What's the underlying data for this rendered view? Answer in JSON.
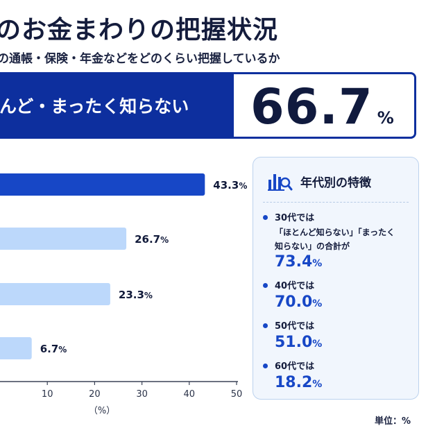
{
  "header": {
    "title": "のお金まわりの把握状況",
    "subtitle": "の通帳・保険・年金などをどのくらい把握しているか"
  },
  "banner": {
    "label": "んど・まったく知らない",
    "value": "66.7",
    "unit": "%"
  },
  "chart_data": {
    "type": "bar",
    "orientation": "horizontal",
    "values": [
      43.3,
      26.7,
      23.3,
      6.7
    ],
    "value_suffix": "%",
    "xlabel": "（%）",
    "xlim": [
      0,
      50
    ],
    "xticks": [
      "10",
      "20",
      "30",
      "40",
      "50"
    ],
    "colors": [
      "#1747c6",
      "#bcd8fb",
      "#bcd8fb",
      "#bcd8fb"
    ]
  },
  "panel": {
    "title": "年代別の特徴",
    "icon": "bar-chart-magnifier-icon",
    "findings": [
      {
        "label": "30代では",
        "detail": [
          "「ほとんど知らない」「まったく",
          "知らない」の合計が"
        ],
        "value": "73.4",
        "unit": "%"
      },
      {
        "label": "40代では",
        "detail": [],
        "value": "70.0",
        "unit": "%"
      },
      {
        "label": "50代では",
        "detail": [],
        "value": "51.0",
        "unit": "%"
      },
      {
        "label": "60代では",
        "detail": [],
        "value": "18.2",
        "unit": "%"
      }
    ]
  },
  "footer": {
    "unit_note": "単位：%"
  },
  "colors": {
    "accent": "#0d2f9e",
    "primary_bar": "#1747c6",
    "secondary_bar": "#bcd8fb",
    "panel_bg": "#f1f6fd"
  }
}
